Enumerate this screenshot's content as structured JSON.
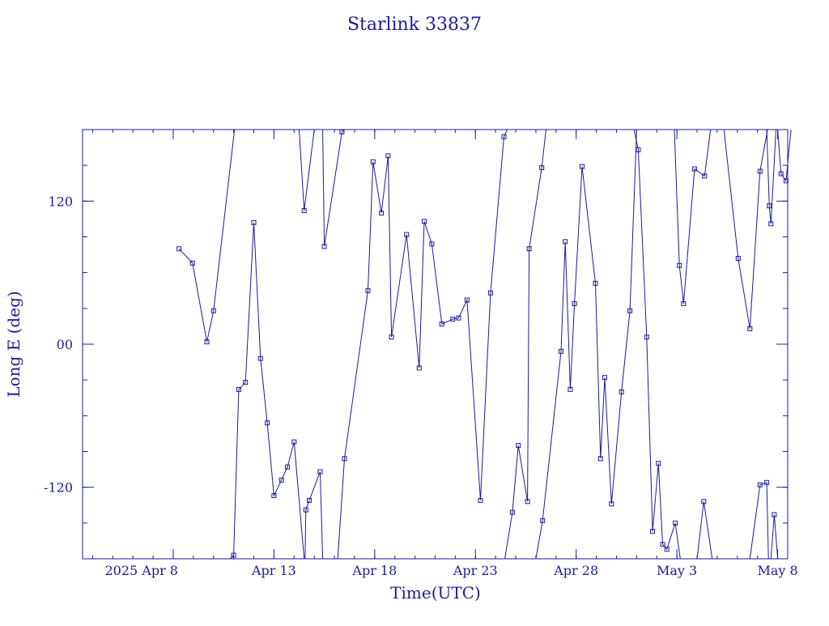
{
  "chart_data": {
    "type": "line",
    "title": "Starlink 33837",
    "xlabel": "Time(UTC)",
    "ylabel": "Long E (deg)",
    "x_unit": "date",
    "xlim": [
      "2025-04-03T12:00",
      "2025-05-08T12:00"
    ],
    "ylim": [
      -180,
      180
    ],
    "x_ticks": [
      "2025-04-08",
      "2025-04-13",
      "2025-04-18",
      "2025-04-23",
      "2025-04-28",
      "2025-05-03",
      "2025-05-08"
    ],
    "x_tick_labels": [
      "2025 Apr  8",
      "Apr 13",
      "Apr 18",
      "Apr 23",
      "Apr 28",
      "May  3",
      "May  8"
    ],
    "y_ticks": [
      -120,
      0,
      120
    ],
    "y_tick_labels": [
      "-120",
      "00",
      "120"
    ],
    "grid": false,
    "legend": "none",
    "marker": "square",
    "color": "#1b1b9a",
    "series": [
      {
        "points": [
          [
            "2025-04-08 07:00",
            80
          ],
          [
            "2025-04-08 23:00",
            68
          ],
          [
            "2025-04-09 16:00",
            2
          ],
          [
            "2025-04-10 00:00",
            28
          ],
          [
            "2025-04-11 01:00",
            180
          ]
        ]
      },
      {
        "points": [
          [
            "2025-04-10 20:00",
            -180
          ],
          [
            "2025-04-11 00:00",
            -177
          ],
          [
            "2025-04-11 06:00",
            -38
          ],
          [
            "2025-04-11 14:00",
            -32
          ],
          [
            "2025-04-12 00:00",
            102
          ],
          [
            "2025-04-12 08:00",
            -12
          ],
          [
            "2025-04-12 16:00",
            -66
          ],
          [
            "2025-04-13 00:00",
            -127
          ],
          [
            "2025-04-13 09:00",
            -114
          ],
          [
            "2025-04-13 16:00",
            -103
          ],
          [
            "2025-04-14 00:00",
            -82
          ],
          [
            "2025-04-14 12:00",
            -180
          ]
        ]
      },
      {
        "points": [
          [
            "2025-04-14 06:00",
            180
          ],
          [
            "2025-04-14 12:00",
            112
          ],
          [
            "2025-04-15 00:00",
            180
          ]
        ]
      },
      {
        "points": [
          [
            "2025-04-14 13:00",
            -180
          ],
          [
            "2025-04-14 14:00",
            -139
          ],
          [
            "2025-04-14 18:00",
            -131
          ],
          [
            "2025-04-15 07:00",
            -107
          ],
          [
            "2025-04-15 10:00",
            -180
          ]
        ]
      },
      {
        "points": [
          [
            "2025-04-15 10:00",
            180
          ],
          [
            "2025-04-15 12:00",
            82
          ],
          [
            "2025-04-16 09:00",
            178
          ],
          [
            "2025-04-16 12:00",
            180
          ]
        ]
      },
      {
        "points": [
          [
            "2025-04-16 04:00",
            -180
          ],
          [
            "2025-04-16 12:00",
            -96
          ],
          [
            "2025-04-17 16:00",
            45
          ],
          [
            "2025-04-17 22:00",
            153
          ],
          [
            "2025-04-18 08:00",
            110
          ],
          [
            "2025-04-18 16:00",
            158
          ],
          [
            "2025-04-18 20:00",
            6
          ],
          [
            "2025-04-19 14:00",
            92
          ],
          [
            "2025-04-20 05:00",
            -20
          ],
          [
            "2025-04-20 11:00",
            103
          ],
          [
            "2025-04-20 20:00",
            84
          ],
          [
            "2025-04-21 08:00",
            17
          ],
          [
            "2025-04-21 21:00",
            21
          ],
          [
            "2025-04-22 04:00",
            22
          ],
          [
            "2025-04-22 14:00",
            37
          ],
          [
            "2025-04-23 06:00",
            -131
          ],
          [
            "2025-04-23 18:00",
            43
          ],
          [
            "2025-04-24 10:00",
            174
          ],
          [
            "2025-04-24 14:00",
            180
          ]
        ]
      },
      {
        "points": [
          [
            "2025-04-24 11:00",
            -180
          ],
          [
            "2025-04-24 20:00",
            -141
          ],
          [
            "2025-04-25 03:00",
            -85
          ],
          [
            "2025-04-25 14:00",
            -132
          ],
          [
            "2025-04-25 16:00",
            80
          ],
          [
            "2025-04-26 07:00",
            148
          ],
          [
            "2025-04-26 12:00",
            180
          ]
        ]
      },
      {
        "points": [
          [
            "2025-04-25 14:00",
            180
          ],
          [
            "2025-04-25 16:00",
            180
          ]
        ]
      },
      {
        "points": [
          [
            "2025-04-26 00:00",
            -180
          ],
          [
            "2025-04-26 08:00",
            -148
          ],
          [
            "2025-04-27 06:00",
            -6
          ],
          [
            "2025-04-27 11:00",
            86
          ],
          [
            "2025-04-27 17:00",
            -38
          ],
          [
            "2025-04-27 22:00",
            34
          ],
          [
            "2025-04-28 07:00",
            149
          ],
          [
            "2025-04-28 23:00",
            51
          ],
          [
            "2025-04-29 05:00",
            -96
          ],
          [
            "2025-04-29 10:00",
            -28
          ],
          [
            "2025-04-29 18:00",
            -134
          ],
          [
            "2025-04-30 06:00",
            -40
          ],
          [
            "2025-04-30 16:00",
            28
          ],
          [
            "2025-05-01 00:00",
            180
          ]
        ]
      },
      {
        "points": [
          [
            "2025-04-30 21:00",
            180
          ],
          [
            "2025-05-01 02:00",
            163
          ],
          [
            "2025-05-01 12:00",
            6
          ],
          [
            "2025-05-01 19:00",
            -157
          ],
          [
            "2025-05-02 02:00",
            -100
          ],
          [
            "2025-05-02 07:00",
            -168
          ],
          [
            "2025-05-02 12:00",
            -172
          ],
          [
            "2025-05-02 22:00",
            -150
          ],
          [
            "2025-05-03 04:00",
            -180
          ]
        ]
      },
      {
        "points": [
          [
            "2025-05-02 21:00",
            180
          ],
          [
            "2025-05-03 03:00",
            66
          ],
          [
            "2025-05-03 08:00",
            34
          ],
          [
            "2025-05-03 21:00",
            147
          ],
          [
            "2025-05-04 09:00",
            141
          ],
          [
            "2025-05-04 16:00",
            180
          ]
        ]
      },
      {
        "points": [
          [
            "2025-05-03 08:00",
            180
          ],
          [
            "2025-05-03 14:00",
            180
          ]
        ]
      },
      {
        "points": [
          [
            "2025-05-04 00:00",
            -180
          ],
          [
            "2025-05-04 08:00",
            -132
          ],
          [
            "2025-05-04 18:00",
            -180
          ]
        ]
      },
      {
        "points": [
          [
            "2025-05-05 08:00",
            180
          ],
          [
            "2025-05-06 01:00",
            72
          ],
          [
            "2025-05-06 15:00",
            13
          ],
          [
            "2025-05-07 03:00",
            145
          ],
          [
            "2025-05-07 12:00",
            180
          ]
        ]
      },
      {
        "points": [
          [
            "2025-05-06 15:00",
            -180
          ],
          [
            "2025-05-07 03:00",
            -118
          ],
          [
            "2025-05-07 11:00",
            -116
          ],
          [
            "2025-05-07 13:00",
            -180
          ]
        ]
      },
      {
        "points": [
          [
            "2025-05-07 11:00",
            180
          ],
          [
            "2025-05-07 14:00",
            116
          ],
          [
            "2025-05-07 16:00",
            101
          ],
          [
            "2025-05-07 22:00",
            180
          ]
        ]
      },
      {
        "points": [
          [
            "2025-05-07 16:00",
            -180
          ],
          [
            "2025-05-07 20:00",
            -143
          ],
          [
            "2025-05-08 00:00",
            -180
          ]
        ]
      },
      {
        "points": [
          [
            "2025-05-08 00:00",
            180
          ],
          [
            "2025-05-08 04:00",
            143
          ],
          [
            "2025-05-08 10:00",
            137
          ],
          [
            "2025-05-08 16:00",
            180
          ]
        ]
      },
      {
        "points": [
          [
            "2025-05-08 04:00",
            -180
          ],
          [
            "2025-05-08 10:00",
            -180
          ]
        ]
      }
    ]
  }
}
